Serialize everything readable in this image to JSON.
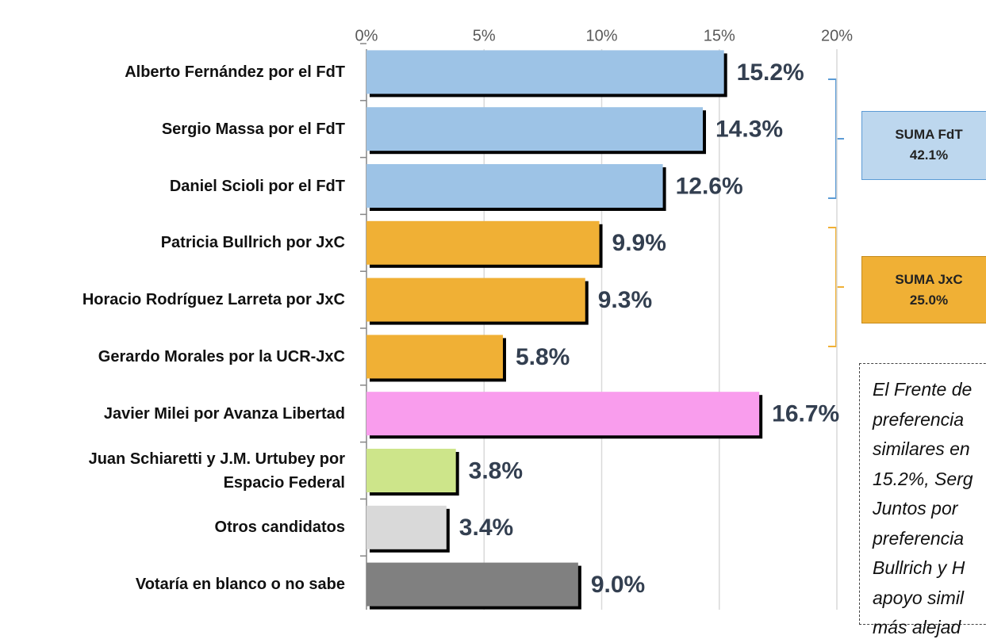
{
  "chart_data": {
    "type": "bar",
    "orientation": "horizontal",
    "categories": [
      "Alberto Fernández por el FdT",
      "Sergio Massa por el FdT",
      "Daniel Scioli por el FdT",
      "Patricia Bullrich por JxC",
      "Horacio Rodríguez Larreta por JxC",
      "Gerardo Morales por la UCR-JxC",
      "Javier Milei por Avanza Libertad",
      "Juan Schiaretti y J.M. Urtubey por\nEspacio Federal",
      "Otros candidatos",
      "Votaría en blanco o no sabe"
    ],
    "values": [
      15.2,
      14.3,
      12.6,
      9.9,
      9.3,
      5.8,
      16.7,
      3.8,
      3.4,
      9.0
    ],
    "value_labels": [
      "15.2%",
      "14.3%",
      "12.6%",
      "9.9%",
      "9.3%",
      "5.8%",
      "16.7%",
      "3.8%",
      "3.4%",
      "9.0%"
    ],
    "colors": [
      "#9dc3e6",
      "#9dc3e6",
      "#9dc3e6",
      "#f0b035",
      "#f0b035",
      "#f0b035",
      "#f99ded",
      "#cde58a",
      "#d9d9d9",
      "#808080"
    ],
    "xlim": [
      0,
      20
    ],
    "xticks": [
      {
        "value": 0,
        "label": "0%"
      },
      {
        "value": 5,
        "label": "5%"
      },
      {
        "value": 10,
        "label": "10%"
      },
      {
        "value": 15,
        "label": "15%"
      },
      {
        "value": 20,
        "label": "20%"
      }
    ],
    "grid": true,
    "annotations": {
      "fdt_box": [
        "SUMA FdT",
        "42.1%"
      ],
      "jxc_box": [
        "SUMA JxC",
        "25.0%"
      ],
      "note_lines": [
        "El Frente de",
        "preferencia",
        "similares en",
        "15.2%, Serg",
        "Juntos por",
        "preferencia",
        "Bullrich y H",
        "apoyo simil",
        "más alejad"
      ]
    }
  }
}
